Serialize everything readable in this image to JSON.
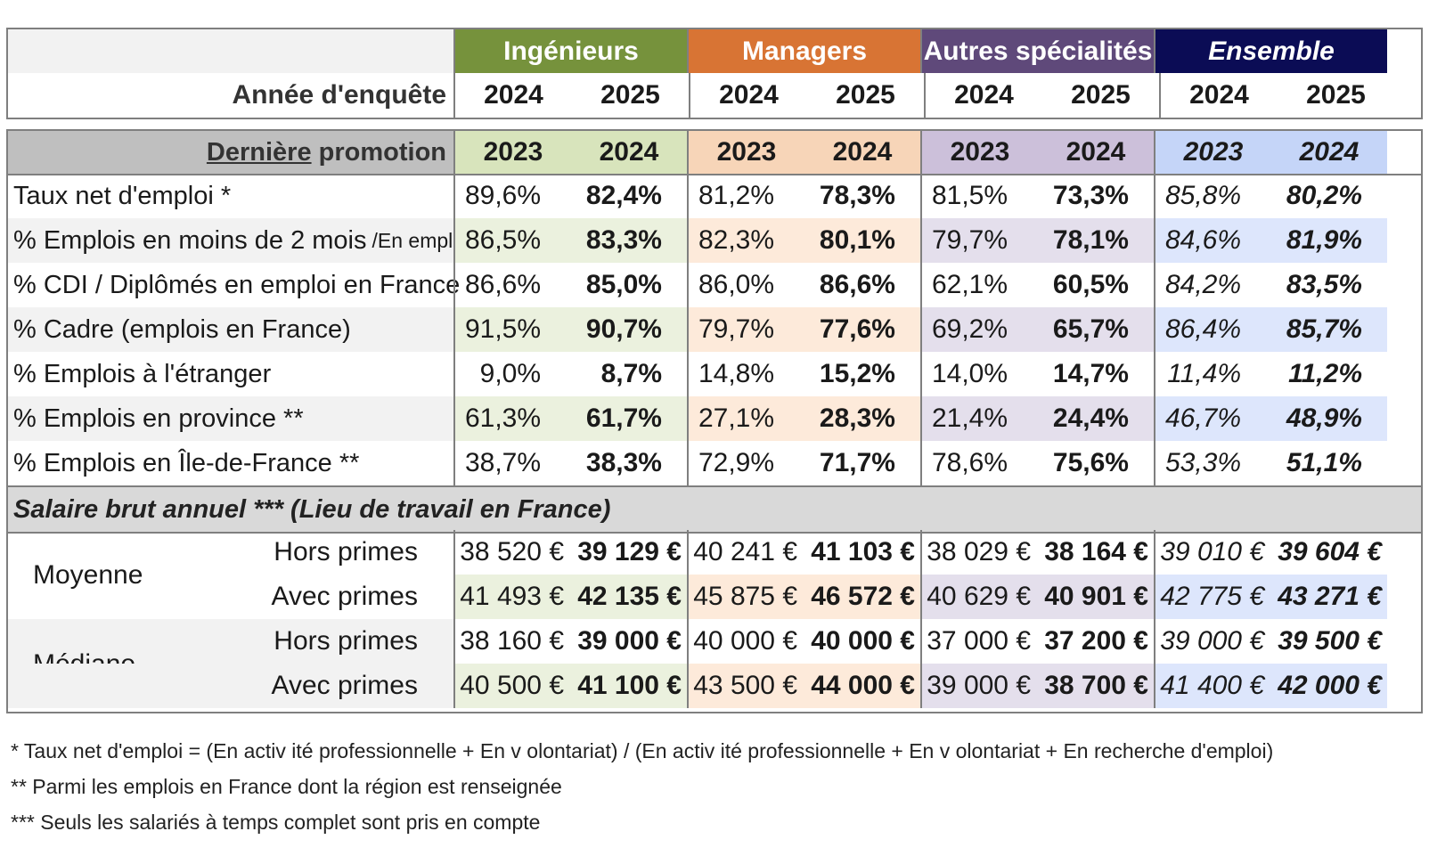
{
  "colors": {
    "ingenieurs": "#76923c",
    "managers": "#d87434",
    "autres": "#5f497a",
    "ensemble": "#0b0c55",
    "ing_light": "#ebf1de",
    "man_light": "#fdeada",
    "aut_light": "#e4dfec",
    "ens_light": "#dde6fc",
    "ing_mid": "#d8e4bc",
    "man_mid": "#f7d5b8",
    "aut_mid": "#ccc0da",
    "ens_mid": "#c5d5f8",
    "row_grey": "#f2f2f2",
    "promo_grey": "#bfbfbf"
  },
  "header": {
    "groups": [
      "Ingénieurs",
      "Managers",
      "Autres spécialités",
      "Ensemble"
    ],
    "year_label": "Année d'enquête",
    "years": [
      "2024",
      "2025",
      "2024",
      "2025",
      "2024",
      "2025",
      "2024",
      "2025"
    ]
  },
  "promotion": {
    "label_underlined": "Dernière",
    "label_rest": " promotion",
    "years": [
      "2023",
      "2024",
      "2023",
      "2024",
      "2023",
      "2024",
      "2023",
      "2024"
    ]
  },
  "rows": [
    {
      "label": "Taux net d'emploi *",
      "sub": "",
      "values": [
        "89,6%",
        "82,4%",
        "81,2%",
        "78,3%",
        "81,5%",
        "73,3%",
        "85,8%",
        "80,2%"
      ]
    },
    {
      "label": "% Emplois en moins de 2 mois",
      "sub": "/En emploi",
      "values": [
        "86,5%",
        "83,3%",
        "82,3%",
        "80,1%",
        "79,7%",
        "78,1%",
        "84,6%",
        "81,9%"
      ]
    },
    {
      "label": "% CDI / Diplômés en emploi en France",
      "sub": "",
      "values": [
        "86,6%",
        "85,0%",
        "86,0%",
        "86,6%",
        "62,1%",
        "60,5%",
        "84,2%",
        "83,5%"
      ]
    },
    {
      "label": "% Cadre (emplois en France)",
      "sub": "",
      "values": [
        "91,5%",
        "90,7%",
        "79,7%",
        "77,6%",
        "69,2%",
        "65,7%",
        "86,4%",
        "85,7%"
      ]
    },
    {
      "label": "% Emplois à l'étranger",
      "sub": "",
      "values": [
        "9,0%",
        "8,7%",
        "14,8%",
        "15,2%",
        "14,0%",
        "14,7%",
        "11,4%",
        "11,2%"
      ]
    },
    {
      "label": "% Emplois en province **",
      "sub": "",
      "values": [
        "61,3%",
        "61,7%",
        "27,1%",
        "28,3%",
        "21,4%",
        "24,4%",
        "46,7%",
        "48,9%"
      ]
    },
    {
      "label": "% Emplois en Île-de-France **",
      "sub": "",
      "values": [
        "38,7%",
        "38,3%",
        "72,9%",
        "71,7%",
        "78,6%",
        "75,6%",
        "53,3%",
        "51,1%"
      ]
    }
  ],
  "salary_section": "Salaire brut annuel *** (Lieu de travail en France)",
  "salary": [
    {
      "group": "Moyenne",
      "sub": "Hors primes",
      "values": [
        "38 520 €",
        "39 129 €",
        "40 241 €",
        "41 103 €",
        "38 029 €",
        "38 164 €",
        "39 010 €",
        "39 604 €"
      ]
    },
    {
      "group": "",
      "sub": "Avec primes",
      "values": [
        "41 493 €",
        "42 135 €",
        "45 875 €",
        "46 572 €",
        "40 629 €",
        "40 901 €",
        "42 775 €",
        "43 271 €"
      ]
    },
    {
      "group": "Médiane",
      "sub": "Hors primes",
      "values": [
        "38 160 €",
        "39 000 €",
        "40 000 €",
        "40 000 €",
        "37 000 €",
        "37 200 €",
        "39 000 €",
        "39 500 €"
      ]
    },
    {
      "group": "",
      "sub": "Avec primes",
      "values": [
        "40 500 €",
        "41 100 €",
        "43 500 €",
        "44 000 €",
        "39 000 €",
        "38 700 €",
        "41 400 €",
        "42 000 €"
      ]
    }
  ],
  "footnotes": [
    "* Taux  net d'emploi = (En activ ité professionnelle + En v olontariat) / (En activ ité professionnelle + En v olontariat + En recherche d'emploi)",
    "** Parmi les emplois en France dont la région est renseignée",
    "*** Seuls les salariés à temps complet sont pris en compte"
  ]
}
